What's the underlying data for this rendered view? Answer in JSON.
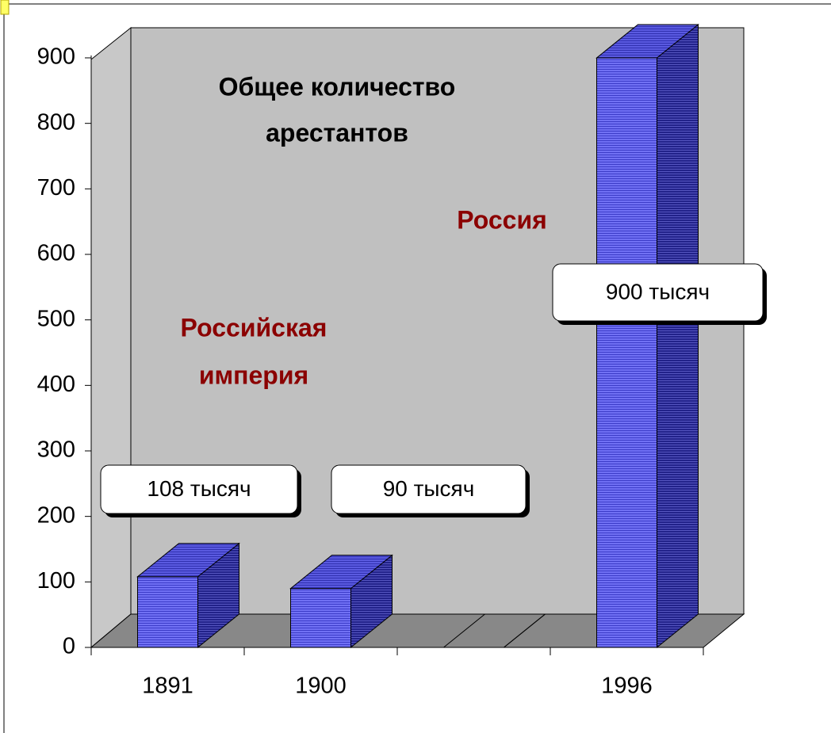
{
  "chart_data": {
    "type": "bar3d",
    "title": [
      "Общее количество",
      "арестантов"
    ],
    "annotations": [
      [
        "Российская",
        "империя"
      ],
      [
        "Россия"
      ]
    ],
    "categories": [
      "1891",
      "1900",
      null,
      "1996"
    ],
    "values": [
      108,
      90,
      0,
      900
    ],
    "value_labels": [
      "108 тысяч",
      "90 тысяч",
      null,
      "900 тысяч"
    ],
    "color": "#6666ee",
    "ylim": [
      0,
      900
    ],
    "yticks": [
      0,
      100,
      200,
      300,
      400,
      500,
      600,
      700,
      800,
      900
    ]
  }
}
